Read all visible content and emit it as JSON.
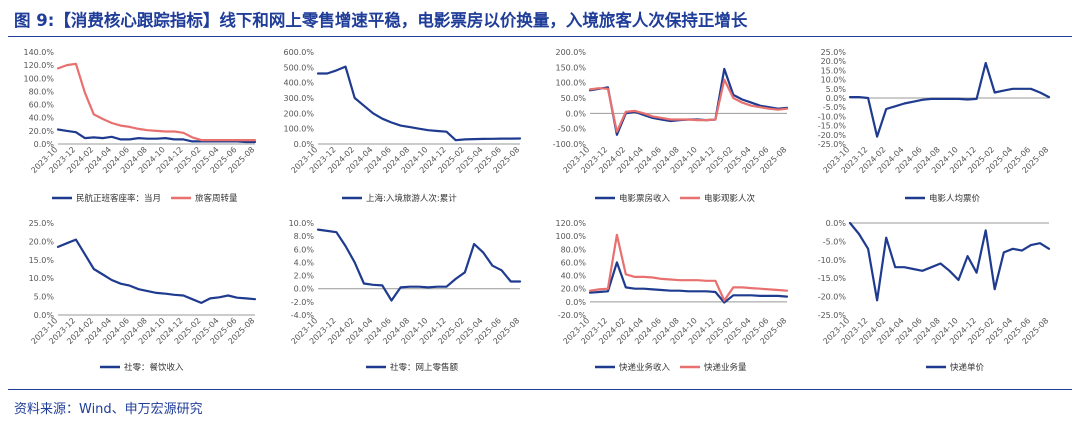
{
  "figure_title": "图 9:【消费核心跟踪指标】线下和网上零售增速平稳，电影票房以价换量，入境旅客人次保持正增长",
  "source": "资料来源：Wind、申万宏源研究",
  "colors": {
    "title": "#1f3d99",
    "navy": "#1f3b8f",
    "red": "#e8706e",
    "axis": "#999999"
  },
  "chart_data": [
    {
      "type": "line",
      "x": [
        "2023-10",
        "2023-11",
        "2023-12",
        "2024-01",
        "2024-02",
        "2024-03",
        "2024-04",
        "2024-05",
        "2024-06",
        "2024-07",
        "2024-08",
        "2024-09",
        "2024-10",
        "2024-11",
        "2024-12",
        "2025-01",
        "2025-02",
        "2025-03",
        "2025-04",
        "2025-05",
        "2025-06",
        "2025-07",
        "2025-08"
      ],
      "x_tick_labels": [
        "2023-10",
        "2023-12",
        "2024-02",
        "2024-04",
        "2024-06",
        "2024-08",
        "2024-10",
        "2024-12",
        "2025-02",
        "2025-04",
        "2025-06",
        "2025-08"
      ],
      "y_tick_labels": [
        "0.0%",
        "20.0%",
        "40.0%",
        "60.0%",
        "80.0%",
        "100.0%",
        "120.0%",
        "140.0%"
      ],
      "ylim": [
        0,
        140
      ],
      "series": [
        {
          "name": "民航正班客座率：当月",
          "color": "navy",
          "values": [
            22,
            20,
            18,
            9,
            10,
            9,
            11,
            7,
            7,
            9,
            8,
            8,
            9,
            7,
            7,
            4,
            4,
            4,
            4,
            4,
            4,
            3,
            3
          ]
        },
        {
          "name": "旅客周转量",
          "color": "red",
          "values": [
            115,
            120,
            122,
            78,
            45,
            38,
            32,
            28,
            26,
            23,
            21,
            20,
            19,
            19,
            17,
            10,
            6,
            6,
            6,
            6,
            6,
            6,
            6
          ]
        }
      ]
    },
    {
      "type": "line",
      "x": [
        "2023-10",
        "2023-11",
        "2023-12",
        "2024-01",
        "2024-02",
        "2024-03",
        "2024-04",
        "2024-05",
        "2024-06",
        "2024-07",
        "2024-08",
        "2024-09",
        "2024-10",
        "2024-11",
        "2024-12",
        "2025-01",
        "2025-02",
        "2025-03",
        "2025-04",
        "2025-05",
        "2025-06",
        "2025-07",
        "2025-08"
      ],
      "x_tick_labels": [
        "2023-10",
        "2023-12",
        "2024-02",
        "2024-04",
        "2024-06",
        "2024-08",
        "2024-10",
        "2024-12",
        "2025-02",
        "2025-04",
        "2025-06",
        "2025-08"
      ],
      "y_tick_labels": [
        "0.0%",
        "100.0%",
        "200.0%",
        "300.0%",
        "400.0%",
        "500.0%",
        "600.0%"
      ],
      "ylim": [
        0,
        600
      ],
      "series": [
        {
          "name": "上海:入境旅游人次:累计",
          "color": "navy",
          "values": [
            460,
            460,
            480,
            505,
            300,
            250,
            200,
            165,
            140,
            120,
            110,
            100,
            90,
            85,
            80,
            25,
            30,
            32,
            33,
            34,
            35,
            35,
            36
          ]
        }
      ]
    },
    {
      "type": "line",
      "x": [
        "2023-10",
        "2023-11",
        "2023-12",
        "2024-01",
        "2024-02",
        "2024-03",
        "2024-04",
        "2024-05",
        "2024-06",
        "2024-07",
        "2024-08",
        "2024-09",
        "2024-10",
        "2024-11",
        "2024-12",
        "2025-01",
        "2025-02",
        "2025-03",
        "2025-04",
        "2025-05",
        "2025-06",
        "2025-07",
        "2025-08"
      ],
      "x_tick_labels": [
        "2023-10",
        "2023-12",
        "2024-02",
        "2024-04",
        "2024-06",
        "2024-08",
        "2024-10",
        "2024-12",
        "2025-02",
        "2025-04",
        "2025-06",
        "2025-08"
      ],
      "y_tick_labels": [
        "-100.0%",
        "-50.0%",
        "0.0%",
        "50.0%",
        "100.0%",
        "150.0%",
        "200.0%"
      ],
      "ylim": [
        -100,
        200
      ],
      "series": [
        {
          "name": "电影票房收入",
          "color": "navy",
          "values": [
            75,
            80,
            85,
            -70,
            0,
            5,
            -5,
            -15,
            -20,
            -25,
            -22,
            -20,
            -20,
            -22,
            -20,
            145,
            60,
            45,
            35,
            25,
            20,
            15,
            18
          ]
        },
        {
          "name": "电影观影人次",
          "color": "red",
          "values": [
            78,
            82,
            80,
            -60,
            5,
            8,
            0,
            -10,
            -15,
            -20,
            -20,
            -20,
            -22,
            -22,
            -20,
            110,
            50,
            35,
            25,
            20,
            15,
            12,
            15
          ]
        }
      ]
    },
    {
      "type": "line",
      "x": [
        "2023-10",
        "2023-11",
        "2023-12",
        "2024-01",
        "2024-02",
        "2024-03",
        "2024-04",
        "2024-05",
        "2024-06",
        "2024-07",
        "2024-08",
        "2024-09",
        "2024-10",
        "2024-11",
        "2024-12",
        "2025-01",
        "2025-02",
        "2025-03",
        "2025-04",
        "2025-05",
        "2025-06",
        "2025-07",
        "2025-08"
      ],
      "x_tick_labels": [
        "2023-10",
        "2023-12",
        "2024-02",
        "2024-04",
        "2024-06",
        "2024-08",
        "2024-10",
        "2024-12",
        "2025-02",
        "2025-04",
        "2025-06",
        "2025-08"
      ],
      "y_tick_labels": [
        "-25.0%",
        "-20.0%",
        "-15.0%",
        "-10.0%",
        "-5.0%",
        "0.0%",
        "5.0%",
        "10.0%",
        "15.0%",
        "20.0%",
        "25.0%"
      ],
      "ylim": [
        -25,
        25
      ],
      "series": [
        {
          "name": "电影人均票价",
          "color": "navy",
          "values": [
            0.5,
            0.5,
            0,
            -21,
            -6,
            -4.5,
            -3,
            -2,
            -1,
            -0.5,
            -0.5,
            -0.5,
            -0.5,
            -0.8,
            -0.5,
            19,
            3,
            4,
            5,
            5,
            5,
            3,
            0.5
          ]
        }
      ]
    },
    {
      "type": "line",
      "x": [
        "2023-10",
        "2023-11",
        "2023-12",
        "2024-01",
        "2024-02",
        "2024-03",
        "2024-04",
        "2024-05",
        "2024-06",
        "2024-07",
        "2024-08",
        "2024-09",
        "2024-10",
        "2024-11",
        "2024-12",
        "2025-01",
        "2025-02",
        "2025-03",
        "2025-04",
        "2025-05",
        "2025-06",
        "2025-07",
        "2025-08"
      ],
      "x_tick_labels": [
        "2023-10",
        "2023-12",
        "2024-02",
        "2024-04",
        "2024-06",
        "2024-08",
        "2024-10",
        "2024-12",
        "2025-02",
        "2025-04",
        "2025-06",
        "2025-08"
      ],
      "y_tick_labels": [
        "0.0%",
        "5.0%",
        "10.0%",
        "15.0%",
        "20.0%",
        "25.0%"
      ],
      "ylim": [
        0,
        25
      ],
      "series": [
        {
          "name": "社零：餐饮收入",
          "color": "navy",
          "values": [
            18.5,
            19.5,
            20.5,
            16.5,
            12.5,
            11,
            9.5,
            8.5,
            8,
            7,
            6.5,
            6,
            5.8,
            5.5,
            5.3,
            4.3,
            3.3,
            4.5,
            4.8,
            5.3,
            4.7,
            4.5,
            4.3
          ]
        }
      ]
    },
    {
      "type": "line",
      "x": [
        "2023-10",
        "2023-11",
        "2023-12",
        "2024-01",
        "2024-02",
        "2024-03",
        "2024-04",
        "2024-05",
        "2024-06",
        "2024-07",
        "2024-08",
        "2024-09",
        "2024-10",
        "2024-11",
        "2024-12",
        "2025-01",
        "2025-02",
        "2025-03",
        "2025-04",
        "2025-05",
        "2025-06",
        "2025-07",
        "2025-08"
      ],
      "x_tick_labels": [
        "2023-10",
        "2023-12",
        "2024-02",
        "2024-04",
        "2024-06",
        "2024-08",
        "2024-10",
        "2024-12",
        "2025-02",
        "2025-04",
        "2025-06",
        "2025-08"
      ],
      "y_tick_labels": [
        "-4.0%",
        "-2.0%",
        "0.0%",
        "2.0%",
        "4.0%",
        "6.0%",
        "8.0%",
        "10.0%"
      ],
      "ylim": [
        -4,
        10
      ],
      "series": [
        {
          "name": "社零：网上零售额",
          "color": "navy",
          "values": [
            9,
            8.8,
            8.6,
            6.5,
            4,
            0.8,
            0.6,
            0.5,
            -1.8,
            0.2,
            0.3,
            0.3,
            0.2,
            0.3,
            0.3,
            1.5,
            2.5,
            6.8,
            5.5,
            3.5,
            2.8,
            1.1,
            1.1
          ]
        }
      ]
    },
    {
      "type": "line",
      "x": [
        "2023-10",
        "2023-11",
        "2023-12",
        "2024-01",
        "2024-02",
        "2024-03",
        "2024-04",
        "2024-05",
        "2024-06",
        "2024-07",
        "2024-08",
        "2024-09",
        "2024-10",
        "2024-11",
        "2024-12",
        "2025-01",
        "2025-02",
        "2025-03",
        "2025-04",
        "2025-05",
        "2025-06",
        "2025-07",
        "2025-08"
      ],
      "x_tick_labels": [
        "2023-10",
        "2023-12",
        "2024-02",
        "2024-04",
        "2024-06",
        "2024-08",
        "2024-10",
        "2024-12",
        "2025-02",
        "2025-04",
        "2025-06",
        "2025-08"
      ],
      "y_tick_labels": [
        "-20.0%",
        "0.0%",
        "20.0%",
        "40.0%",
        "60.0%",
        "80.0%",
        "100.0%",
        "120.0%"
      ],
      "ylim": [
        -20,
        120
      ],
      "series": [
        {
          "name": "快递业务收入",
          "color": "navy",
          "values": [
            14,
            15,
            16,
            60,
            22,
            20,
            20,
            19,
            18,
            17,
            17,
            16,
            16,
            16,
            15,
            -1,
            10,
            10,
            10,
            9,
            9,
            9,
            8
          ]
        },
        {
          "name": "快递业务量",
          "color": "red",
          "values": [
            17,
            19,
            20,
            102,
            42,
            38,
            38,
            37,
            35,
            34,
            33,
            33,
            33,
            32,
            32,
            2,
            22,
            22,
            21,
            20,
            19,
            18,
            17
          ]
        }
      ]
    },
    {
      "type": "line",
      "x": [
        "2023-10",
        "2023-11",
        "2023-12",
        "2024-01",
        "2024-02",
        "2024-03",
        "2024-04",
        "2024-05",
        "2024-06",
        "2024-07",
        "2024-08",
        "2024-09",
        "2024-10",
        "2024-11",
        "2024-12",
        "2025-01",
        "2025-02",
        "2025-03",
        "2025-04",
        "2025-05",
        "2025-06",
        "2025-07",
        "2025-08"
      ],
      "x_tick_labels": [
        "2023-10",
        "2023-12",
        "2024-02",
        "2024-04",
        "2024-06",
        "2024-08",
        "2024-10",
        "2024-12",
        "2025-02",
        "2025-04",
        "2025-06",
        "2025-08"
      ],
      "y_tick_labels": [
        "-25.0%",
        "-20.0%",
        "-15.0%",
        "-10.0%",
        "-5.0%",
        "0.0%"
      ],
      "ylim": [
        -25,
        0
      ],
      "series": [
        {
          "name": "快递单价",
          "color": "navy",
          "values": [
            0,
            -3,
            -7,
            -21,
            -4,
            -12,
            -12,
            -12.5,
            -13,
            -12,
            -11,
            -13,
            -15.5,
            -9,
            -13.5,
            -2,
            -18,
            -8,
            -7,
            -7.5,
            -6,
            -5.5,
            -7
          ]
        }
      ]
    }
  ]
}
